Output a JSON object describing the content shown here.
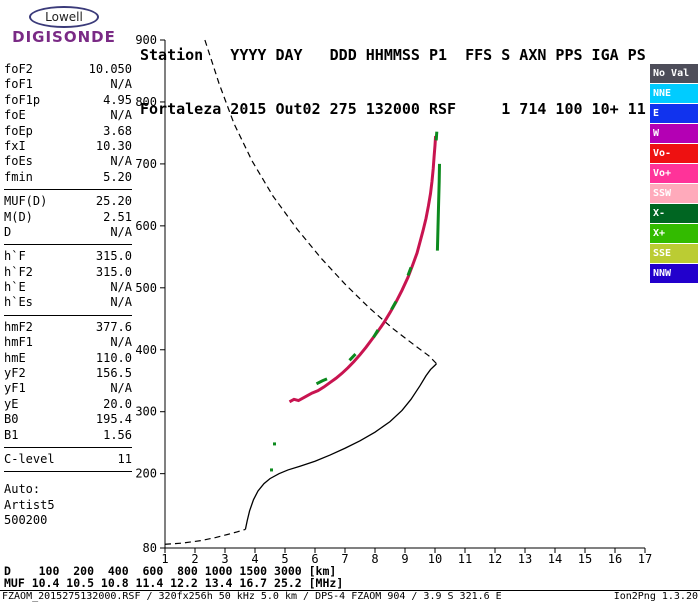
{
  "logo": {
    "top": "Lowell",
    "bottom": "DIGISONDE"
  },
  "header": {
    "line1": "Station   YYYY DAY   DDD HHMMSS P1  FFS S AXN PPS IGA PS",
    "line2": "Fortaleza 2015 Out02 275 132000 RSF     1 714 100 10+ 11"
  },
  "params": {
    "groups": [
      {
        "rows": [
          {
            "label": "foF2",
            "value": "10.050"
          },
          {
            "label": "foF1",
            "value": "N/A"
          },
          {
            "label": "foF1p",
            "value": "4.95"
          },
          {
            "label": "foE",
            "value": "N/A"
          },
          {
            "label": "foEp",
            "value": "3.68"
          },
          {
            "label": "fxI",
            "value": "10.30"
          },
          {
            "label": "foEs",
            "value": "N/A"
          },
          {
            "label": "fmin",
            "value": "5.20"
          }
        ]
      },
      {
        "rows": [
          {
            "label": "MUF(D)",
            "value": "25.20"
          },
          {
            "label": "M(D)",
            "value": "2.51"
          },
          {
            "label": "D",
            "value": "N/A"
          }
        ]
      },
      {
        "rows": [
          {
            "label": "h`F",
            "value": "315.0"
          },
          {
            "label": "h`F2",
            "value": "315.0"
          },
          {
            "label": "h`E",
            "value": "N/A"
          },
          {
            "label": "h`Es",
            "value": "N/A"
          }
        ]
      },
      {
        "rows": [
          {
            "label": "hmF2",
            "value": "377.6"
          },
          {
            "label": "hmF1",
            "value": "N/A"
          },
          {
            "label": "hmE",
            "value": "110.0"
          },
          {
            "label": "yF2",
            "value": "156.5"
          },
          {
            "label": "yF1",
            "value": "N/A"
          },
          {
            "label": "yE",
            "value": "20.0"
          },
          {
            "label": "B0",
            "value": "195.4"
          },
          {
            "label": "B1",
            "value": "1.56"
          }
        ]
      },
      {
        "rows": [
          {
            "label": "C-level",
            "value": "11"
          }
        ]
      }
    ],
    "footer": [
      "Auto:",
      "Artist5",
      "500200"
    ]
  },
  "legend": {
    "items": [
      {
        "label": "No Val",
        "color": "#4d4d59"
      },
      {
        "label": "NNE",
        "color": "#00ccff"
      },
      {
        "label": "E",
        "color": "#1133ee"
      },
      {
        "label": "W",
        "color": "#b400b4"
      },
      {
        "label": "Vo-",
        "color": "#ee1111"
      },
      {
        "label": "Vo+",
        "color": "#ff3399"
      },
      {
        "label": "SSW",
        "color": "#ffaabb"
      },
      {
        "label": "X-",
        "color": "#006622"
      },
      {
        "label": "X+",
        "color": "#33bb00"
      },
      {
        "label": "SSE",
        "color": "#bbcc33"
      },
      {
        "label": "NNW",
        "color": "#2200cc"
      }
    ]
  },
  "chart_data": {
    "type": "scatter",
    "title": "",
    "xlabel": "",
    "ylabel": "",
    "xlim": [
      1,
      17
    ],
    "ylim": [
      80,
      900
    ],
    "x_ticks": [
      1,
      2,
      3,
      4,
      5,
      6,
      7,
      8,
      9,
      10,
      11,
      12,
      13,
      14,
      15,
      16,
      17
    ],
    "y_ticks": [
      80,
      200,
      300,
      400,
      500,
      600,
      700,
      800,
      900
    ],
    "grid": false,
    "series": [
      {
        "name": "topside-model-profile",
        "type": "line",
        "dashed": true,
        "color": "#000000",
        "width": 1.2,
        "points": [
          [
            2.33,
            900
          ],
          [
            2.8,
            830
          ],
          [
            3.3,
            765
          ],
          [
            3.9,
            705
          ],
          [
            4.6,
            648
          ],
          [
            5.4,
            595
          ],
          [
            6.2,
            548
          ],
          [
            7.0,
            506
          ],
          [
            7.8,
            468
          ],
          [
            8.6,
            434
          ],
          [
            9.3,
            408
          ],
          [
            9.8,
            390
          ],
          [
            10.05,
            377.6
          ]
        ]
      },
      {
        "name": "bottom-model-profile",
        "type": "line",
        "dashed": true,
        "color": "#000000",
        "width": 1.2,
        "points": [
          [
            1.0,
            86
          ],
          [
            1.6,
            88
          ],
          [
            2.2,
            92
          ],
          [
            2.7,
            97
          ],
          [
            3.1,
            102
          ],
          [
            3.4,
            106
          ],
          [
            3.68,
            110
          ]
        ]
      },
      {
        "name": "true-height-profile",
        "type": "line",
        "dashed": false,
        "color": "#000000",
        "width": 1.3,
        "points": [
          [
            3.68,
            110
          ],
          [
            3.74,
            124
          ],
          [
            3.82,
            140
          ],
          [
            3.95,
            158
          ],
          [
            4.1,
            172
          ],
          [
            4.3,
            184
          ],
          [
            4.5,
            192
          ],
          [
            4.8,
            200
          ],
          [
            5.1,
            206
          ],
          [
            5.5,
            212
          ],
          [
            6.0,
            220
          ],
          [
            6.5,
            230
          ],
          [
            7.0,
            241
          ],
          [
            7.5,
            253
          ],
          [
            8.0,
            267
          ],
          [
            8.5,
            284
          ],
          [
            8.9,
            302
          ],
          [
            9.2,
            320
          ],
          [
            9.5,
            342
          ],
          [
            9.7,
            358
          ],
          [
            9.85,
            368
          ],
          [
            10.0,
            375
          ],
          [
            10.05,
            377.6
          ]
        ]
      },
      {
        "name": "o-mode-echo-trace",
        "type": "line",
        "dashed": false,
        "color": "#c81450",
        "width": 3,
        "points": [
          [
            5.15,
            316
          ],
          [
            5.3,
            320
          ],
          [
            5.45,
            318
          ],
          [
            5.6,
            322
          ],
          [
            5.75,
            326
          ],
          [
            5.9,
            330
          ],
          [
            6.1,
            334
          ],
          [
            6.3,
            340
          ],
          [
            6.5,
            347
          ],
          [
            6.7,
            354
          ],
          [
            6.9,
            362
          ],
          [
            7.1,
            371
          ],
          [
            7.3,
            381
          ],
          [
            7.5,
            392
          ],
          [
            7.7,
            404
          ],
          [
            7.9,
            417
          ],
          [
            8.1,
            430
          ],
          [
            8.3,
            444
          ],
          [
            8.5,
            460
          ],
          [
            8.7,
            477
          ],
          [
            8.9,
            496
          ],
          [
            9.1,
            517
          ],
          [
            9.25,
            536
          ],
          [
            9.4,
            556
          ],
          [
            9.5,
            574
          ],
          [
            9.6,
            592
          ],
          [
            9.7,
            612
          ],
          [
            9.78,
            632
          ],
          [
            9.85,
            652
          ],
          [
            9.9,
            672
          ],
          [
            9.94,
            692
          ],
          [
            9.97,
            712
          ],
          [
            10.0,
            730
          ],
          [
            10.02,
            745
          ]
        ]
      },
      {
        "name": "x-mode-echo-trace",
        "type": "multiline",
        "dashed": false,
        "color": "#0c8a1e",
        "width": 3,
        "segments": [
          [
            [
              6.05,
              345
            ],
            [
              6.25,
              350
            ],
            [
              6.4,
              353
            ]
          ],
          [
            [
              7.15,
              383
            ],
            [
              7.35,
              393
            ]
          ],
          [
            [
              7.95,
              420
            ],
            [
              8.1,
              432
            ]
          ],
          [
            [
              8.55,
              465
            ],
            [
              8.7,
              478
            ]
          ],
          [
            [
              9.1,
              520
            ],
            [
              9.2,
              533
            ]
          ],
          [
            [
              10.08,
              560
            ],
            [
              10.1,
              598
            ],
            [
              10.12,
              636
            ],
            [
              10.14,
              672
            ],
            [
              10.15,
              700
            ]
          ],
          [
            [
              10.04,
              738
            ],
            [
              10.06,
              752
            ]
          ],
          [
            [
              4.65,
              248
            ]
          ],
          [
            [
              4.55,
              206
            ]
          ]
        ]
      }
    ]
  },
  "footer": {
    "d_line": "D    100  200  400  600  800 1000 1500 3000 [km]",
    "muf_line": "MUF 10.4 10.5 10.8 11.4 12.2 13.4 16.7 25.2 [MHz]",
    "file_info": "FZAOM_2015275132000.RSF / 320fx256h 50 kHz 5.0 km / DPS-4 FZAOM 904 / 3.9 S 321.6 E",
    "version": "Ion2Png 1.3.20"
  }
}
